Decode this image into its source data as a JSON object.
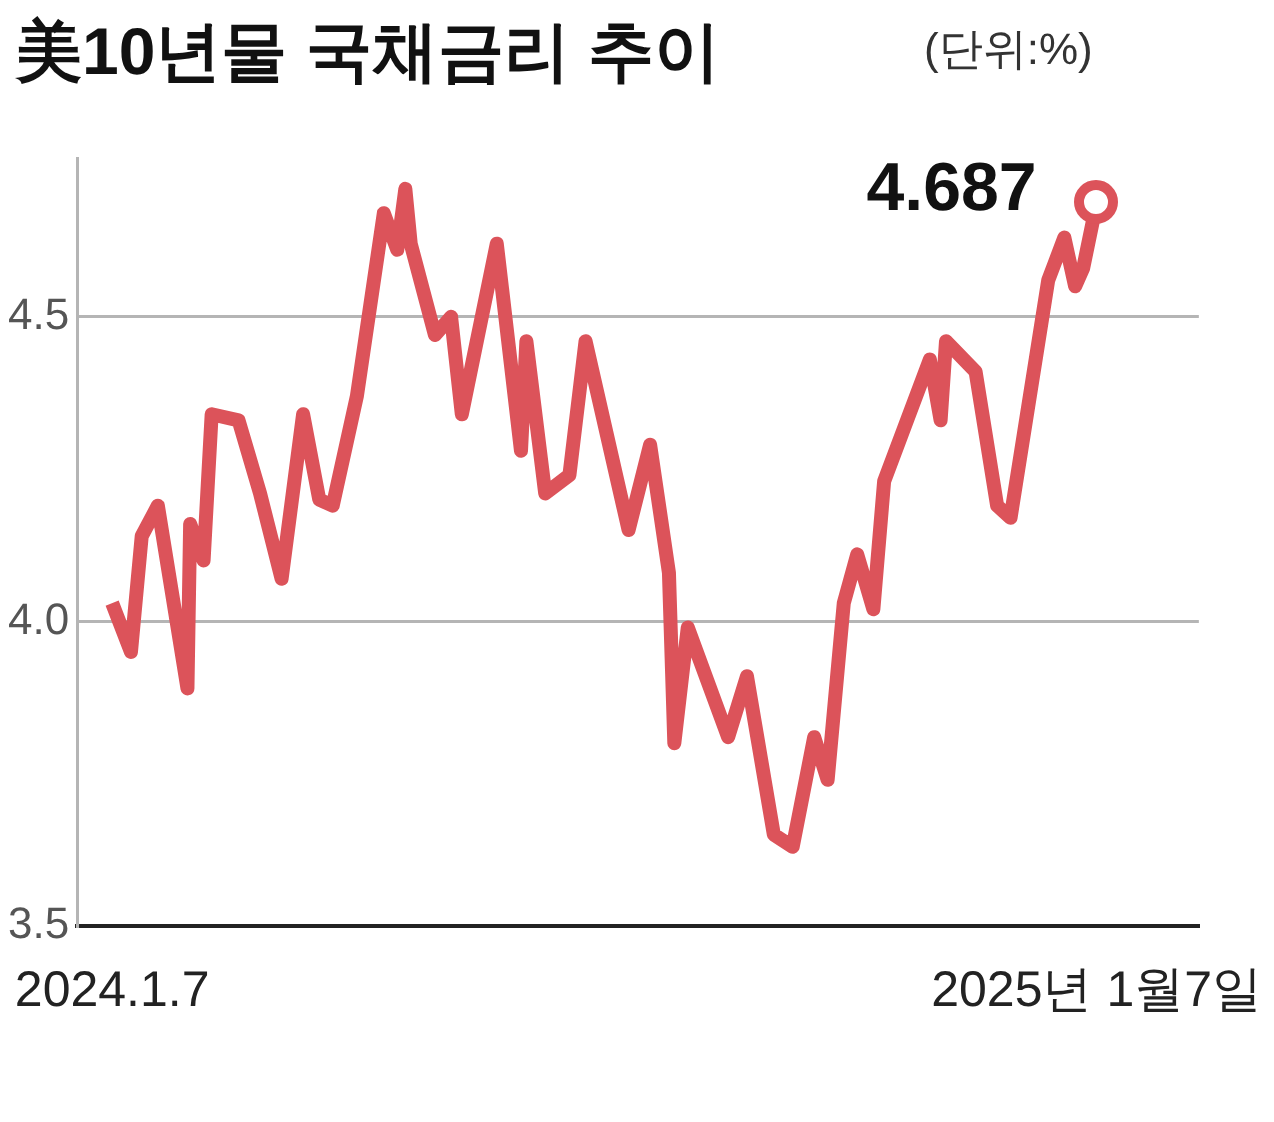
{
  "chart_data": {
    "type": "line",
    "title": "美10년물 국채금리 추이",
    "subtitle": "(단위:%)",
    "x": [
      "2024-01-07",
      "2024-01-14",
      "2024-01-18",
      "2024-01-24",
      "2024-02-04",
      "2024-02-05",
      "2024-02-10",
      "2024-02-13",
      "2024-02-23",
      "2024-03-02",
      "2024-03-10",
      "2024-03-18",
      "2024-03-24",
      "2024-03-29",
      "2024-04-07",
      "2024-04-17",
      "2024-04-22",
      "2024-04-25",
      "2024-04-27",
      "2024-05-06",
      "2024-05-12",
      "2024-05-16",
      "2024-05-29",
      "2024-06-07",
      "2024-06-09",
      "2024-06-16",
      "2024-06-25",
      "2024-07-01",
      "2024-07-17",
      "2024-07-25",
      "2024-08-01",
      "2024-08-03",
      "2024-08-08",
      "2024-08-23",
      "2024-08-30",
      "2024-09-09",
      "2024-09-16",
      "2024-09-24",
      "2024-09-29",
      "2024-10-05",
      "2024-10-10",
      "2024-10-16",
      "2024-10-20",
      "2024-11-06",
      "2024-11-10",
      "2024-11-12",
      "2024-11-23",
      "2024-12-01",
      "2024-12-06",
      "2024-12-20",
      "2024-12-26",
      "2024-12-30",
      "2025-01-02",
      "2025-01-07"
    ],
    "series": [
      {
        "color": "#dc535a",
        "values": [
          4.03,
          3.95,
          4.14,
          4.19,
          3.89,
          4.16,
          4.1,
          4.34,
          4.33,
          4.21,
          4.07,
          4.34,
          4.2,
          4.19,
          4.37,
          4.67,
          4.61,
          4.71,
          4.62,
          4.47,
          4.5,
          4.34,
          4.62,
          4.28,
          4.46,
          4.21,
          4.24,
          4.46,
          4.15,
          4.29,
          4.08,
          3.8,
          3.99,
          3.81,
          3.91,
          3.65,
          3.63,
          3.81,
          3.74,
          4.03,
          4.11,
          4.02,
          4.23,
          4.43,
          4.33,
          4.46,
          4.41,
          4.19,
          4.17,
          4.56,
          4.63,
          4.55,
          4.58,
          4.687
        ],
        "value_labels": [
          null,
          null,
          null,
          null,
          null,
          null,
          null,
          null,
          null,
          null,
          null,
          null,
          null,
          null,
          null,
          null,
          null,
          null,
          null,
          null,
          null,
          null,
          null,
          null,
          null,
          null,
          null,
          null,
          null,
          null,
          null,
          null,
          null,
          null,
          null,
          null,
          null,
          null,
          null,
          null,
          null,
          null,
          null,
          null,
          null,
          null,
          null,
          null,
          null,
          null,
          null,
          null,
          null,
          "4.687"
        ]
      }
    ],
    "xlim": [
      "2023-12-25",
      "2025-02-14"
    ],
    "xticks": [
      {
        "value": "2024-01-07",
        "label": "2024.1.7"
      },
      {
        "value": "2025-01-07",
        "label": "2025년 1월7일"
      }
    ],
    "ylim": [
      3.5,
      4.76
    ],
    "yticks": [
      3.5,
      {
        "value": 4.0,
        "label": "4.0"
      },
      4.5
    ],
    "grid": "y",
    "legend": false
  }
}
